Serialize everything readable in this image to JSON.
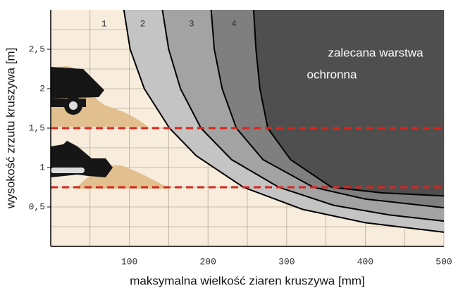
{
  "chart_data": {
    "type": "line",
    "x_label": "maksymalna wielkość ziaren kruszywa [mm]",
    "y_label": "wysokość zrzutu kruszywa [m]",
    "xlim": [
      0,
      500
    ],
    "ylim": [
      0,
      3
    ],
    "xticks": [
      100,
      200,
      300,
      400,
      500
    ],
    "yticks": [
      {
        "value": 0.5,
        "label": "0,5"
      },
      1,
      {
        "value": 1.5,
        "label": "1,5"
      },
      2,
      {
        "value": 2.5,
        "label": "2,5"
      }
    ],
    "grid": true,
    "reference_lines": [
      1.5,
      0.75
    ],
    "reference_color": "#d9261c",
    "annotation": [
      "zalecana warstwa",
      "ochronna"
    ],
    "series": [
      {
        "name": "1",
        "color": "#c4c4c4",
        "x": [
          93,
          101,
          119,
          151,
          185,
          245,
          320,
          400,
          500
        ],
        "values": [
          3,
          2.5,
          2,
          1.5,
          1.15,
          0.75,
          0.47,
          0.3,
          0.18
        ]
      },
      {
        "name": "2",
        "color": "#a3a3a3",
        "x": [
          142,
          150,
          165,
          191,
          230,
          290,
          360,
          430,
          500
        ],
        "values": [
          3,
          2.5,
          2,
          1.5,
          1.1,
          0.75,
          0.52,
          0.4,
          0.32
        ]
      },
      {
        "name": "3",
        "color": "#7f7f7f",
        "x": [
          204,
          208,
          218,
          236,
          270,
          334,
          400,
          500
        ],
        "values": [
          3,
          2.5,
          2,
          1.5,
          1.1,
          0.75,
          0.6,
          0.49
        ]
      },
      {
        "name": "4",
        "color": "#4f4f4f",
        "x": [
          258,
          261,
          266,
          276,
          305,
          357,
          420,
          500
        ],
        "values": [
          3,
          2.5,
          2,
          1.5,
          1.1,
          0.75,
          0.68,
          0.64
        ]
      }
    ]
  }
}
